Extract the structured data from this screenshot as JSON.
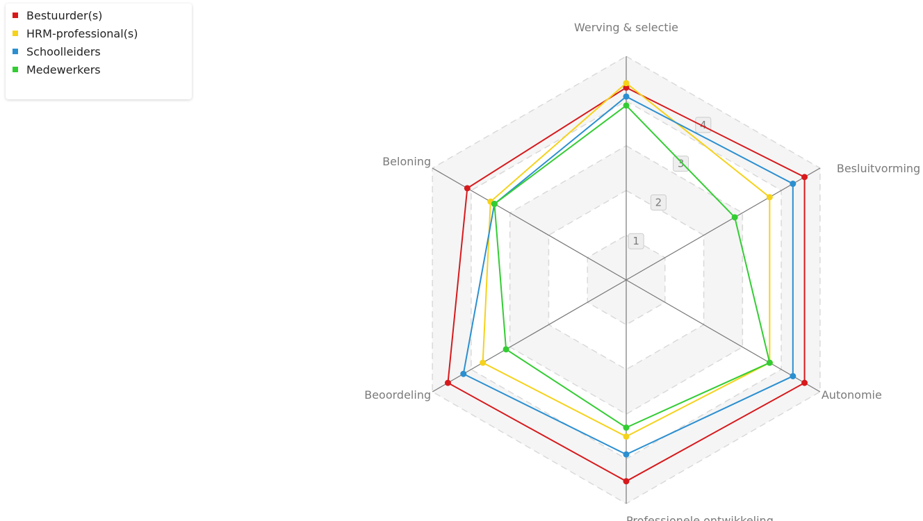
{
  "chart_data": {
    "type": "radar",
    "title": "",
    "axes": [
      "Werving & selectie",
      "Besluitvorming",
      "Autonomie",
      "Professionele ontwikkeling",
      "Beoordeling",
      "Beloning"
    ],
    "scale": {
      "min": 0,
      "max": 5
    },
    "ticks": [
      1,
      2,
      3,
      4
    ],
    "grid": true,
    "legend_position": "top-left",
    "series": [
      {
        "name": "Bestuurder(s)",
        "color": "#d7191c",
        "values": [
          4.3,
          4.6,
          4.6,
          4.5,
          4.6,
          4.1
        ]
      },
      {
        "name": "HRM-professional(s)",
        "color": "#f5d21b",
        "values": [
          4.4,
          3.7,
          3.7,
          3.5,
          3.7,
          3.5
        ]
      },
      {
        "name": "Schoolleiders",
        "color": "#2b8fd0",
        "values": [
          4.1,
          4.3,
          4.3,
          3.9,
          4.2,
          3.4
        ]
      },
      {
        "name": "Medewerkers",
        "color": "#33cc33",
        "values": [
          3.9,
          2.8,
          3.7,
          3.3,
          3.1,
          3.4
        ]
      }
    ]
  }
}
